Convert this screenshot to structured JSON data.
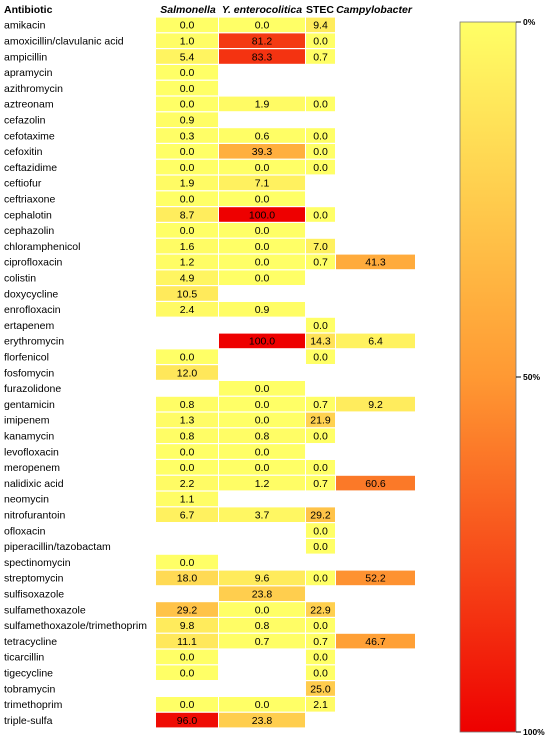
{
  "chart_data": {
    "type": "heatmap",
    "row_header": "Antibiotic",
    "columns": [
      "Salmonella",
      "Y. enterocolitica",
      "STEC",
      "Campylobacter"
    ],
    "rows": [
      {
        "label": "amikacin",
        "values": [
          0.0,
          0.0,
          9.4,
          null
        ]
      },
      {
        "label": "amoxicillin/clavulanic acid",
        "values": [
          1.0,
          81.2,
          0.0,
          null
        ]
      },
      {
        "label": "ampicillin",
        "values": [
          5.4,
          83.3,
          0.7,
          null
        ]
      },
      {
        "label": "apramycin",
        "values": [
          0.0,
          null,
          null,
          null
        ]
      },
      {
        "label": "azithromycin",
        "values": [
          0.0,
          null,
          null,
          null
        ]
      },
      {
        "label": "aztreonam",
        "values": [
          0.0,
          1.9,
          0.0,
          null
        ]
      },
      {
        "label": "cefazolin",
        "values": [
          0.9,
          null,
          null,
          null
        ]
      },
      {
        "label": "cefotaxime",
        "values": [
          0.3,
          0.6,
          0.0,
          null
        ]
      },
      {
        "label": "cefoxitin",
        "values": [
          0.0,
          39.3,
          0.0,
          null
        ]
      },
      {
        "label": "ceftazidime",
        "values": [
          0.0,
          0.0,
          0.0,
          null
        ]
      },
      {
        "label": "ceftiofur",
        "values": [
          1.9,
          7.1,
          null,
          null
        ]
      },
      {
        "label": "ceftriaxone",
        "values": [
          0.0,
          0.0,
          null,
          null
        ]
      },
      {
        "label": "cephalotin",
        "values": [
          8.7,
          100.0,
          0.0,
          null
        ]
      },
      {
        "label": "cephazolin",
        "values": [
          0.0,
          0.0,
          null,
          null
        ]
      },
      {
        "label": "chloramphenicol",
        "values": [
          1.6,
          0.0,
          7.0,
          null
        ]
      },
      {
        "label": "ciprofloxacin",
        "values": [
          1.2,
          0.0,
          0.7,
          41.3
        ]
      },
      {
        "label": "colistin",
        "values": [
          4.9,
          0.0,
          null,
          null
        ]
      },
      {
        "label": "doxycycline",
        "values": [
          10.5,
          null,
          null,
          null
        ]
      },
      {
        "label": "enrofloxacin",
        "values": [
          2.4,
          0.9,
          null,
          null
        ]
      },
      {
        "label": "ertapenem",
        "values": [
          null,
          null,
          0.0,
          null
        ]
      },
      {
        "label": "erythromycin",
        "values": [
          null,
          100.0,
          14.3,
          6.4
        ]
      },
      {
        "label": "florfenicol",
        "values": [
          0.0,
          null,
          0.0,
          null
        ]
      },
      {
        "label": "fosfomycin",
        "values": [
          12.0,
          null,
          null,
          null
        ]
      },
      {
        "label": "furazolidone",
        "values": [
          null,
          0.0,
          null,
          null
        ]
      },
      {
        "label": "gentamicin",
        "values": [
          0.8,
          0.0,
          0.7,
          9.2
        ]
      },
      {
        "label": "imipenem",
        "values": [
          1.3,
          0.0,
          21.9,
          null
        ]
      },
      {
        "label": "kanamycin",
        "values": [
          0.8,
          0.8,
          0.0,
          null
        ]
      },
      {
        "label": "levofloxacin",
        "values": [
          0.0,
          0.0,
          null,
          null
        ]
      },
      {
        "label": "meropenem",
        "values": [
          0.0,
          0.0,
          0.0,
          null
        ]
      },
      {
        "label": "nalidixic acid",
        "values": [
          2.2,
          1.2,
          0.7,
          60.6
        ]
      },
      {
        "label": "neomycin",
        "values": [
          1.1,
          null,
          null,
          null
        ]
      },
      {
        "label": "nitrofurantoin",
        "values": [
          6.7,
          3.7,
          29.2,
          null
        ]
      },
      {
        "label": "ofloxacin",
        "values": [
          null,
          null,
          0.0,
          null
        ]
      },
      {
        "label": "piperacillin/tazobactam",
        "values": [
          null,
          null,
          0.0,
          null
        ]
      },
      {
        "label": "spectinomycin",
        "values": [
          0.0,
          null,
          null,
          null
        ]
      },
      {
        "label": "streptomycin",
        "values": [
          18.0,
          9.6,
          0.0,
          52.2
        ]
      },
      {
        "label": "sulfisoxazole",
        "values": [
          null,
          23.8,
          null,
          null
        ]
      },
      {
        "label": "sulfamethoxazole",
        "values": [
          29.2,
          0.0,
          22.9,
          null
        ]
      },
      {
        "label": "sulfamethoxazole/trimethoprim",
        "values": [
          9.8,
          0.8,
          0.0,
          null
        ]
      },
      {
        "label": "tetracycline",
        "values": [
          11.1,
          0.7,
          0.7,
          46.7
        ]
      },
      {
        "label": "ticarcillin",
        "values": [
          0.0,
          null,
          0.0,
          null
        ]
      },
      {
        "label": "tigecycline",
        "values": [
          0.0,
          null,
          0.0,
          null
        ]
      },
      {
        "label": "tobramycin",
        "values": [
          null,
          null,
          25.0,
          null
        ]
      },
      {
        "label": "trimethoprim",
        "values": [
          0.0,
          0.0,
          2.1,
          null
        ]
      },
      {
        "label": "triple-sulfa",
        "values": [
          96.0,
          23.8,
          null,
          null
        ]
      }
    ],
    "value_range": [
      0,
      100
    ],
    "colorscale": {
      "low": "#ffff66",
      "mid": "#ff9933",
      "high": "#ee0000"
    },
    "colorbar": {
      "ticks": [
        {
          "value": 0,
          "label": "0%"
        },
        {
          "value": 50,
          "label": "50%"
        },
        {
          "value": 100,
          "label": "100%"
        }
      ]
    }
  }
}
